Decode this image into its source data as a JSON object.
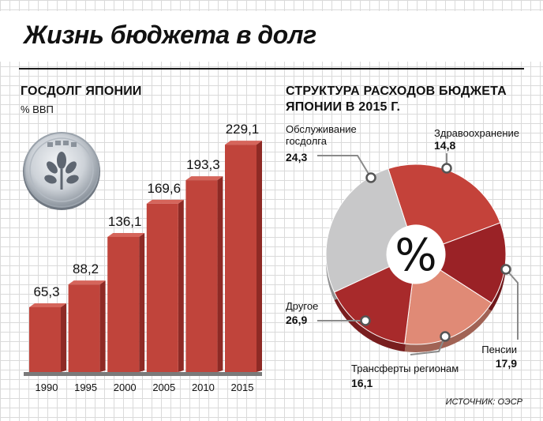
{
  "title": "Жизнь бюджета в долг",
  "source": "ИСТОЧНИК: ОЭСР",
  "colors": {
    "bar": "#c0443b",
    "bar_side": "#8e2a25",
    "debt_service": "#c4423a",
    "health": "#9a2226",
    "pensions": "#e08a76",
    "transfers": "#a82a2b",
    "other": "#c8c8c9"
  },
  "icons": {
    "coin": "yen-coin-icon"
  },
  "chart_data": [
    {
      "type": "bar",
      "title": "ГОСДОЛГ ЯПОНИИ",
      "subtitle": "% ВВП",
      "categories": [
        "1990",
        "1995",
        "2000",
        "2005",
        "2010",
        "2015"
      ],
      "values": [
        65.3,
        88.2,
        136.1,
        169.6,
        193.3,
        229.1
      ],
      "value_labels": [
        "65,3",
        "88,2",
        "136,1",
        "169,6",
        "193,3",
        "229,1"
      ],
      "ylim": [
        0,
        230
      ],
      "grid": true
    },
    {
      "type": "pie",
      "title": "СТРУКТУРА РАСХОДОВ БЮДЖЕТА ЯПОНИИ В 2015 Г.",
      "center_label": "%",
      "slices": [
        {
          "label_lines": [
            "Обслуживание",
            "госдолга"
          ],
          "value": 24.3,
          "value_label": "24,3",
          "color": "#c4423a"
        },
        {
          "label_lines": [
            "Здравоохранение"
          ],
          "value": 14.8,
          "value_label": "14,8",
          "color": "#9a2226"
        },
        {
          "label_lines": [
            "Пенсии"
          ],
          "value": 17.9,
          "value_label": "17,9",
          "color": "#e08a76"
        },
        {
          "label_lines": [
            "Трансферты регионам"
          ],
          "value": 16.1,
          "value_label": "16,1",
          "color": "#a82a2b"
        },
        {
          "label_lines": [
            "Другое"
          ],
          "value": 26.9,
          "value_label": "26,9",
          "color": "#c8c8c9"
        }
      ]
    }
  ]
}
